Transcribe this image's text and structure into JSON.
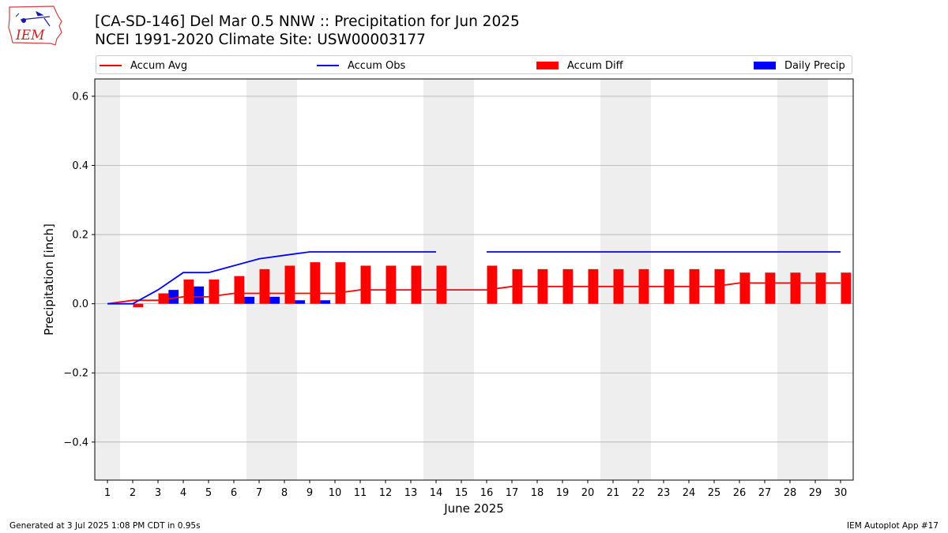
{
  "logo": {
    "text": "IEM",
    "icon": "iowa-state-outline-weather-icon"
  },
  "header": {
    "title_line1": "[CA-SD-146] Del Mar 0.5 NNW :: Precipitation for Jun 2025",
    "title_line2": "NCEI 1991-2020 Climate Site: USW00003177"
  },
  "footer": {
    "left": "Generated at 3 Jul 2025 1:08 PM CDT in 0.95s",
    "right": "IEM Autoplot App #17"
  },
  "colors": {
    "accum_avg": "#ff0000",
    "accum_obs": "#0000ff",
    "accum_diff": "#ff0000",
    "daily_precip": "#0000ff",
    "weekend_shade": "#eeeeee",
    "grid": "#b0b0b0"
  },
  "chart_data": {
    "type": "bar",
    "xlabel": "June 2025",
    "ylabel": "Precipitation [inch]",
    "xlim": [
      0.5,
      30.5
    ],
    "ylim": [
      -0.51,
      0.65
    ],
    "x_ticks": [
      1,
      2,
      3,
      4,
      5,
      6,
      7,
      8,
      9,
      10,
      11,
      12,
      13,
      14,
      15,
      16,
      17,
      18,
      19,
      20,
      21,
      22,
      23,
      24,
      25,
      26,
      27,
      28,
      29,
      30
    ],
    "y_ticks": [
      -0.4,
      -0.2,
      0.0,
      0.2,
      0.4,
      0.6
    ],
    "y_tick_labels": [
      "−0.4",
      "−0.2",
      "0.0",
      "0.2",
      "0.4",
      "0.6"
    ],
    "grid": "horizontal",
    "legend": "top, above plot",
    "weekend_shading": [
      [
        0.5,
        1.5
      ],
      [
        6.5,
        8.5
      ],
      [
        13.5,
        15.5
      ],
      [
        20.5,
        22.5
      ],
      [
        27.5,
        29.5
      ]
    ],
    "days": [
      1,
      2,
      3,
      4,
      5,
      6,
      7,
      8,
      9,
      10,
      11,
      12,
      13,
      14,
      15,
      16,
      17,
      18,
      19,
      20,
      21,
      22,
      23,
      24,
      25,
      26,
      27,
      28,
      29,
      30
    ],
    "series": [
      {
        "name": "Accum Avg",
        "kind": "line",
        "values": [
          0.0,
          0.01,
          0.01,
          0.02,
          0.02,
          0.03,
          0.03,
          0.03,
          0.03,
          0.03,
          0.04,
          0.04,
          0.04,
          0.04,
          0.04,
          0.04,
          0.05,
          0.05,
          0.05,
          0.05,
          0.05,
          0.05,
          0.05,
          0.05,
          0.05,
          0.06,
          0.06,
          0.06,
          0.06,
          0.06
        ]
      },
      {
        "name": "Accum Obs",
        "kind": "line",
        "values": [
          0.0,
          0.0,
          0.04,
          0.09,
          0.09,
          0.11,
          0.13,
          0.14,
          0.15,
          0.15,
          0.15,
          0.15,
          0.15,
          0.15,
          null,
          0.15,
          0.15,
          0.15,
          0.15,
          0.15,
          0.15,
          0.15,
          0.15,
          0.15,
          0.15,
          0.15,
          0.15,
          0.15,
          0.15,
          0.15
        ]
      },
      {
        "name": "Accum Diff",
        "kind": "bar",
        "values": [
          0.0,
          -0.01,
          0.03,
          0.07,
          0.07,
          0.08,
          0.1,
          0.11,
          0.12,
          0.12,
          0.11,
          0.11,
          0.11,
          0.11,
          null,
          0.11,
          0.1,
          0.1,
          0.1,
          0.1,
          0.1,
          0.1,
          0.1,
          0.1,
          0.1,
          0.09,
          0.09,
          0.09,
          0.09,
          0.09
        ]
      },
      {
        "name": "Daily Precip",
        "kind": "bar",
        "values": [
          0.0,
          0.0,
          0.04,
          0.05,
          0.0,
          0.02,
          0.02,
          0.01,
          0.01,
          0.0,
          0.0,
          0.0,
          0.0,
          0.0,
          null,
          0.0,
          0.0,
          0.0,
          0.0,
          0.0,
          0.0,
          0.0,
          0.0,
          0.0,
          0.0,
          0.0,
          0.0,
          0.0,
          0.0,
          0.0
        ]
      }
    ]
  }
}
